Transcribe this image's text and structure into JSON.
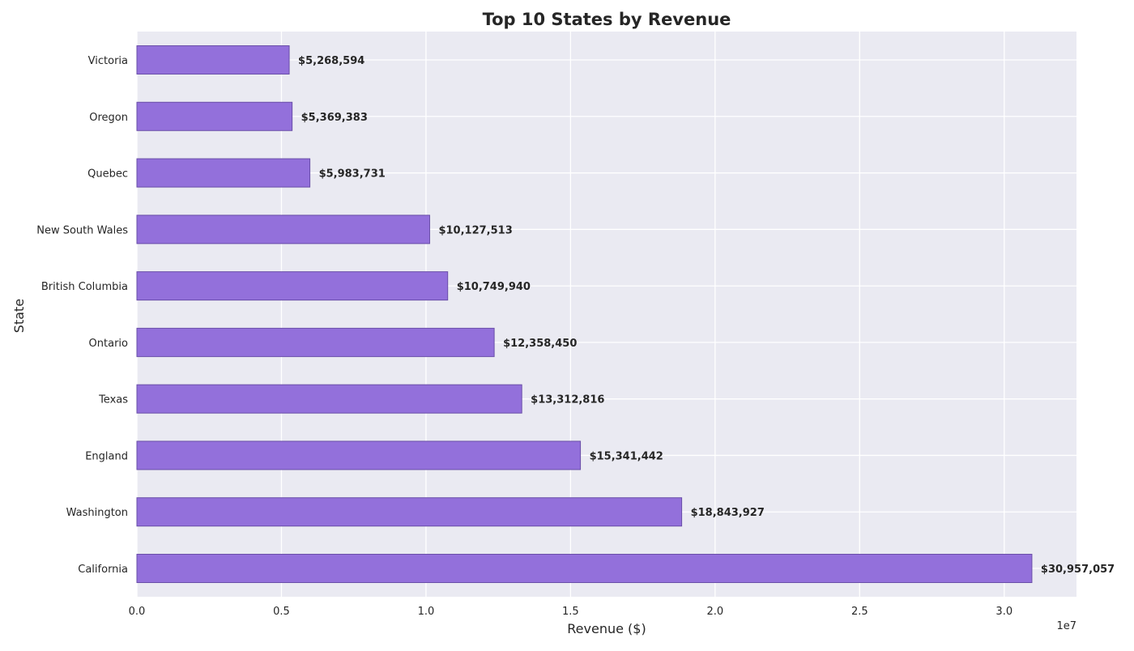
{
  "chart_data": {
    "type": "bar",
    "orientation": "horizontal",
    "title": "Top 10 States by Revenue",
    "xlabel": "Revenue ($)",
    "ylabel": "State",
    "x_scale_label": "1e7",
    "xlim": [
      0,
      32500000
    ],
    "x_ticks": [
      0,
      5000000,
      10000000,
      15000000,
      20000000,
      25000000,
      30000000
    ],
    "x_tick_labels": [
      "0.0",
      "0.5",
      "1.0",
      "1.5",
      "2.0",
      "2.5",
      "3.0"
    ],
    "grid": true,
    "categories": [
      "Victoria",
      "Oregon",
      "Quebec",
      "New South Wales",
      "British Columbia",
      "Ontario",
      "Texas",
      "England",
      "Washington",
      "California"
    ],
    "values": [
      5268594,
      5369383,
      5983731,
      10127513,
      10749940,
      12358450,
      13312816,
      15341442,
      18843927,
      30957057
    ],
    "value_labels": [
      "$5,268,594",
      "$5,369,383",
      "$5,983,731",
      "$10,127,513",
      "$10,749,940",
      "$12,358,450",
      "$13,312,816",
      "$15,341,442",
      "$18,843,927",
      "$30,957,057"
    ],
    "colors": {
      "bar": "#9370db",
      "bar_edge": "#6a4fa8",
      "plot_background": "#eaeaf2",
      "grid": "#ffffff",
      "text": "#262626"
    }
  }
}
